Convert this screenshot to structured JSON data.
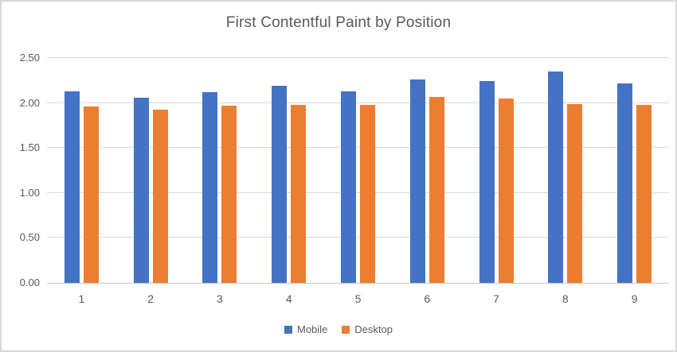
{
  "chart_data": {
    "type": "bar",
    "title": "First Contentful Paint by Position",
    "categories": [
      "1",
      "2",
      "3",
      "4",
      "5",
      "6",
      "7",
      "8",
      "9"
    ],
    "series": [
      {
        "name": "Mobile",
        "color": "#4472C4",
        "values": [
          2.13,
          2.06,
          2.12,
          2.19,
          2.13,
          2.26,
          2.24,
          2.35,
          2.22
        ]
      },
      {
        "name": "Desktop",
        "color": "#ED7D31",
        "values": [
          1.96,
          1.93,
          1.97,
          1.98,
          1.98,
          2.07,
          2.05,
          1.99,
          1.98
        ]
      }
    ],
    "ylim": [
      0,
      2.5
    ],
    "y_tick_step": 0.5,
    "y_tick_labels": [
      "0.00",
      "0.50",
      "1.00",
      "1.50",
      "2.00",
      "2.50"
    ],
    "xlabel": "",
    "ylabel": "",
    "grid": true,
    "legend_position": "bottom"
  },
  "colors": {
    "grid": "#D9D9D9",
    "axis": "#C6C6C6",
    "text": "#595959",
    "frame_border": "#D9D9D9",
    "background": "#FFFFFF"
  }
}
